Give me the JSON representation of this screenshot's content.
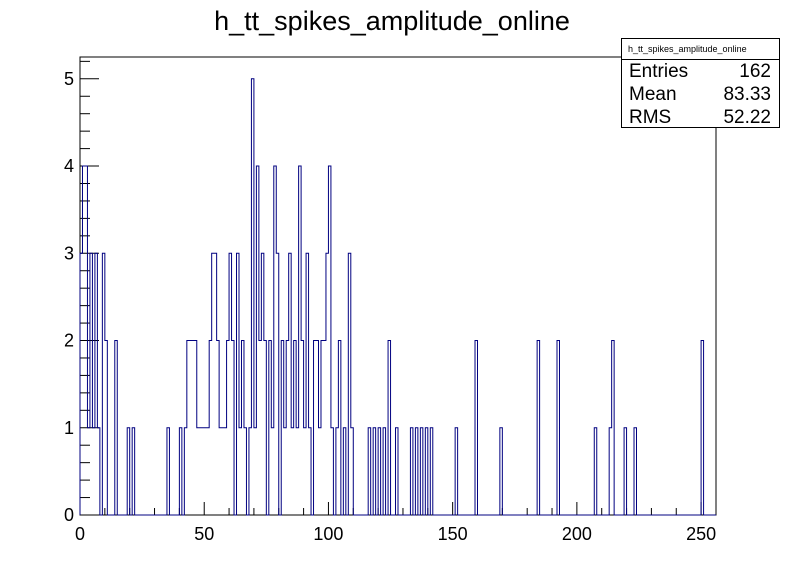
{
  "chart_data": {
    "type": "histogram",
    "title": "h_tt_spikes_amplitude_online",
    "xlabel": "",
    "ylabel": "",
    "xlim": [
      0,
      256
    ],
    "ylim": [
      0,
      5.25
    ],
    "bin_width": 1,
    "line_color": "#000080",
    "grid": false,
    "x_ticks": [
      0,
      50,
      100,
      150,
      200,
      250
    ],
    "y_ticks": [
      0,
      1,
      2,
      3,
      4,
      5
    ],
    "stats": {
      "title": "h_tt_spikes_amplitude_online",
      "entries_label": "Entries",
      "entries": "162",
      "mean_label": "Mean",
      "mean": "83.33",
      "rms_label": "RMS",
      "rms": "52.22",
      "position": "top-right"
    },
    "bins": [
      [
        0,
        3
      ],
      [
        1,
        4
      ],
      [
        2,
        4
      ],
      [
        3,
        1
      ],
      [
        4,
        3
      ],
      [
        5,
        1
      ],
      [
        6,
        3
      ],
      [
        7,
        1
      ],
      [
        8,
        0
      ],
      [
        9,
        3
      ],
      [
        10,
        2
      ],
      [
        11,
        0
      ],
      [
        14,
        2
      ],
      [
        15,
        0
      ],
      [
        19,
        1
      ],
      [
        20,
        0
      ],
      [
        21,
        1
      ],
      [
        22,
        0
      ],
      [
        35,
        1
      ],
      [
        36,
        0
      ],
      [
        40,
        1
      ],
      [
        41,
        0
      ],
      [
        42,
        1
      ],
      [
        43,
        2
      ],
      [
        47,
        1
      ],
      [
        52,
        2
      ],
      [
        53,
        3
      ],
      [
        55,
        2
      ],
      [
        56,
        1
      ],
      [
        58,
        1
      ],
      [
        59,
        2
      ],
      [
        60,
        3
      ],
      [
        61,
        2
      ],
      [
        62,
        0
      ],
      [
        63,
        3
      ],
      [
        64,
        1
      ],
      [
        65,
        2
      ],
      [
        66,
        1
      ],
      [
        67,
        0
      ],
      [
        68,
        1
      ],
      [
        69,
        5
      ],
      [
        70,
        1
      ],
      [
        71,
        4
      ],
      [
        72,
        2
      ],
      [
        73,
        3
      ],
      [
        74,
        2
      ],
      [
        75,
        0
      ],
      [
        76,
        2
      ],
      [
        77,
        1
      ],
      [
        78,
        4
      ],
      [
        79,
        3
      ],
      [
        80,
        0
      ],
      [
        81,
        2
      ],
      [
        82,
        1
      ],
      [
        83,
        2
      ],
      [
        84,
        3
      ],
      [
        85,
        1
      ],
      [
        86,
        2
      ],
      [
        87,
        1
      ],
      [
        88,
        4
      ],
      [
        89,
        2
      ],
      [
        90,
        1
      ],
      [
        91,
        3
      ],
      [
        92,
        1
      ],
      [
        93,
        0
      ],
      [
        94,
        2
      ],
      [
        96,
        1
      ],
      [
        97,
        2
      ],
      [
        99,
        3
      ],
      [
        100,
        4
      ],
      [
        101,
        1
      ],
      [
        102,
        0
      ],
      [
        103,
        1
      ],
      [
        104,
        2
      ],
      [
        105,
        0
      ],
      [
        106,
        1
      ],
      [
        107,
        0
      ],
      [
        108,
        3
      ],
      [
        109,
        1
      ],
      [
        110,
        0
      ],
      [
        116,
        1
      ],
      [
        117,
        0
      ],
      [
        118,
        1
      ],
      [
        119,
        0
      ],
      [
        120,
        1
      ],
      [
        121,
        0
      ],
      [
        122,
        1
      ],
      [
        123,
        0
      ],
      [
        124,
        2
      ],
      [
        125,
        0
      ],
      [
        127,
        1
      ],
      [
        128,
        0
      ],
      [
        133,
        1
      ],
      [
        134,
        0
      ],
      [
        135,
        1
      ],
      [
        136,
        0
      ],
      [
        137,
        1
      ],
      [
        138,
        0
      ],
      [
        139,
        1
      ],
      [
        140,
        0
      ],
      [
        141,
        1
      ],
      [
        142,
        0
      ],
      [
        151,
        1
      ],
      [
        152,
        0
      ],
      [
        159,
        2
      ],
      [
        160,
        0
      ],
      [
        169,
        1
      ],
      [
        170,
        0
      ],
      [
        184,
        2
      ],
      [
        185,
        0
      ],
      [
        192,
        2
      ],
      [
        193,
        0
      ],
      [
        207,
        1
      ],
      [
        208,
        0
      ],
      [
        213,
        1
      ],
      [
        214,
        2
      ],
      [
        215,
        0
      ],
      [
        219,
        1
      ],
      [
        220,
        0
      ],
      [
        223,
        1
      ],
      [
        224,
        0
      ],
      [
        250,
        2
      ],
      [
        251,
        0
      ]
    ]
  }
}
